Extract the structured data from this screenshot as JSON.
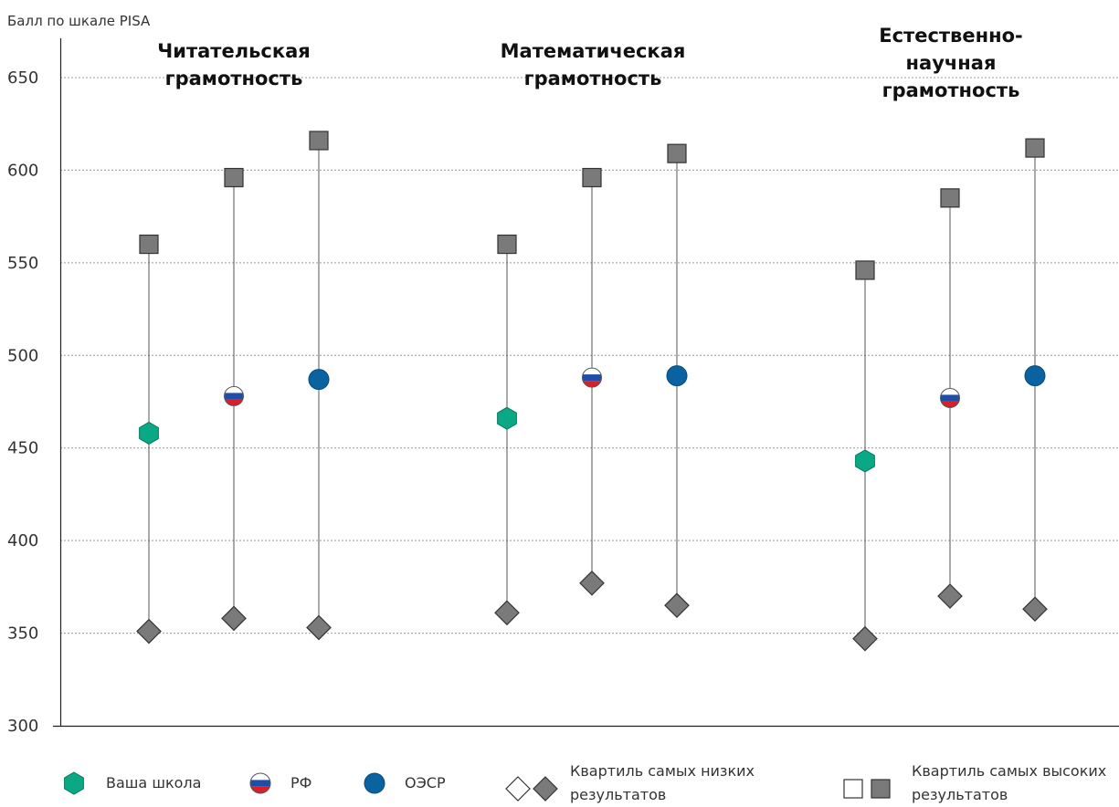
{
  "chart_data": {
    "type": "scatter",
    "ylabel": "Балл по шкале PISA",
    "ylim": [
      300,
      650
    ],
    "yticks": [
      300,
      350,
      400,
      450,
      500,
      550,
      600,
      650
    ],
    "grid": true,
    "groups": [
      {
        "title": "Читательская грамотность",
        "title_lines": [
          "Читательская",
          "грамотность"
        ],
        "points": [
          {
            "entity": "Ваша школа",
            "mean": 458,
            "low_quartile": 351,
            "high_quartile": 560
          },
          {
            "entity": "РФ",
            "mean": 478,
            "low_quartile": 358,
            "high_quartile": 596
          },
          {
            "entity": "ОЭСР",
            "mean": 487,
            "low_quartile": 353,
            "high_quartile": 616
          }
        ]
      },
      {
        "title": "Математическая грамотность",
        "title_lines": [
          "Математическая",
          "грамотность"
        ],
        "points": [
          {
            "entity": "Ваша школа",
            "mean": 466,
            "low_quartile": 361,
            "high_quartile": 560
          },
          {
            "entity": "РФ",
            "mean": 488,
            "low_quartile": 377,
            "high_quartile": 596
          },
          {
            "entity": "ОЭСР",
            "mean": 489,
            "low_quartile": 365,
            "high_quartile": 609
          }
        ]
      },
      {
        "title": "Естественно-научная грамотность",
        "title_lines": [
          "Естественно-",
          "научная",
          "грамотность"
        ],
        "points": [
          {
            "entity": "Ваша школа",
            "mean": 443,
            "low_quartile": 347,
            "high_quartile": 546
          },
          {
            "entity": "РФ",
            "mean": 477,
            "low_quartile": 370,
            "high_quartile": 585
          },
          {
            "entity": "ОЭСР",
            "mean": 489,
            "low_quartile": 363,
            "high_quartile": 612
          }
        ]
      }
    ],
    "legend": [
      {
        "label": "Ваша школа",
        "marker": "hexagon",
        "color": "#0aa884"
      },
      {
        "label": "РФ",
        "marker": "flag-circle"
      },
      {
        "label": "ОЭСР",
        "marker": "circle",
        "color": "#0a63a0"
      },
      {
        "label_lines": [
          "Квартиль самых низких",
          "результатов"
        ],
        "marker": "diamond"
      },
      {
        "label_lines": [
          "Квартиль самых высоких",
          "результатов"
        ],
        "marker": "square"
      }
    ],
    "colors": {
      "school": "#0aa884",
      "oecd": "#0a63a0",
      "quartile_fill": "#7a7a7a",
      "quartile_stroke": "#333333",
      "grid": "#9a9a9a",
      "flag_white": "#ffffff",
      "flag_blue": "#1f4ea8",
      "flag_red": "#d6202a"
    }
  }
}
